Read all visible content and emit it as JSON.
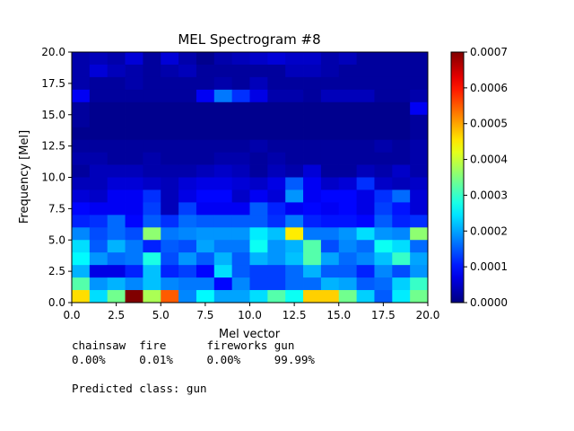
{
  "chart_data": {
    "type": "heatmap",
    "title": "MEL Spectrogram #8",
    "xlabel": "Mel vector",
    "ylabel": "Frequency [Mel]",
    "xlim": [
      0,
      20
    ],
    "ylim": [
      0,
      20
    ],
    "x_ticks": [
      "0.0",
      "2.5",
      "5.0",
      "7.5",
      "10.0",
      "12.5",
      "15.0",
      "17.5",
      "20.0"
    ],
    "y_ticks": [
      "0.0",
      "2.5",
      "5.0",
      "7.5",
      "10.0",
      "12.5",
      "15.0",
      "17.5",
      "20.0"
    ],
    "colormap": "jet",
    "colorbar": {
      "min": 0.0,
      "max": 0.0007,
      "ticks": [
        "0.0000",
        "0.0001",
        "0.0002",
        "0.0003",
        "0.0004",
        "0.0005",
        "0.0006",
        "0.0007"
      ]
    },
    "grid_note": "values listed top row first (y = 19-20 down to y = 0-1); 20 columns x = 0..20",
    "values": [
      [
        3e-05,
        4e-05,
        3e-05,
        6e-05,
        2e-05,
        6e-05,
        3e-05,
        1e-05,
        3e-05,
        4e-05,
        5e-05,
        6e-05,
        5e-05,
        5e-05,
        3e-05,
        4e-05,
        2e-05,
        2e-05,
        2e-05,
        2e-05
      ],
      [
        3e-05,
        6e-05,
        4e-05,
        3e-05,
        2e-05,
        3e-05,
        4e-05,
        2e-05,
        2e-05,
        2e-05,
        2e-05,
        2e-05,
        4e-05,
        4e-05,
        3e-05,
        2e-05,
        2e-05,
        2e-05,
        2e-05,
        2e-05
      ],
      [
        3e-05,
        2e-05,
        2e-05,
        3e-05,
        2e-05,
        2e-05,
        2e-05,
        2e-05,
        3e-05,
        2e-05,
        4e-05,
        2e-05,
        2e-05,
        2e-05,
        2e-05,
        2e-05,
        2e-05,
        2e-05,
        2e-05,
        2e-05
      ],
      [
        8e-05,
        2e-05,
        2e-05,
        2e-05,
        2e-05,
        2e-05,
        2e-05,
        8e-05,
        0.00017,
        0.00012,
        7e-05,
        3e-05,
        3e-05,
        2e-05,
        4e-05,
        4e-05,
        4e-05,
        2e-05,
        2e-05,
        3e-05
      ],
      [
        2e-05,
        1e-05,
        1e-05,
        1e-05,
        1e-05,
        1e-05,
        1e-05,
        1e-05,
        1e-05,
        1e-05,
        1e-05,
        1e-05,
        1e-05,
        1e-05,
        1e-05,
        1e-05,
        1e-05,
        1e-05,
        1e-05,
        8e-05
      ],
      [
        2e-05,
        1e-05,
        1e-05,
        1e-05,
        1e-05,
        1e-05,
        1e-05,
        1e-05,
        1e-05,
        1e-05,
        1e-05,
        1e-05,
        1e-05,
        1e-05,
        1e-05,
        1e-05,
        1e-05,
        1e-05,
        1e-05,
        2e-05
      ],
      [
        1e-05,
        1e-05,
        1e-05,
        1e-05,
        1e-05,
        1e-05,
        1e-05,
        1e-05,
        1e-05,
        1e-05,
        1e-05,
        1e-05,
        1e-05,
        1e-05,
        1e-05,
        1e-05,
        1e-05,
        1e-05,
        1e-05,
        2e-05
      ],
      [
        2e-05,
        2e-05,
        2e-05,
        2e-05,
        2e-05,
        2e-05,
        2e-05,
        2e-05,
        2e-05,
        2e-05,
        3e-05,
        2e-05,
        2e-05,
        2e-05,
        2e-05,
        2e-05,
        2e-05,
        3e-05,
        2e-05,
        3e-05
      ],
      [
        3e-05,
        3e-05,
        2e-05,
        2e-05,
        3e-05,
        2e-05,
        2e-05,
        2e-05,
        3e-05,
        3e-05,
        2e-05,
        3e-05,
        2e-05,
        2e-05,
        2e-05,
        2e-05,
        2e-05,
        2e-05,
        2e-05,
        3e-05
      ],
      [
        2e-05,
        4e-05,
        4e-05,
        4e-05,
        3e-05,
        3e-05,
        3e-05,
        4e-05,
        5e-05,
        4e-05,
        2e-05,
        4e-05,
        3e-05,
        6e-05,
        2e-05,
        2e-05,
        4e-05,
        3e-05,
        5e-05,
        3e-05
      ],
      [
        4e-05,
        4e-05,
        6e-05,
        6e-05,
        5e-05,
        4e-05,
        6e-05,
        7e-05,
        7e-05,
        6e-05,
        5e-05,
        7e-05,
        0.00015,
        8e-05,
        5e-05,
        6e-05,
        0.00012,
        5e-05,
        4e-05,
        5e-05
      ],
      [
        6e-05,
        5e-05,
        8e-05,
        8e-05,
        0.00012,
        4e-05,
        7e-05,
        9e-05,
        9e-05,
        5e-05,
        8e-05,
        6e-05,
        0.00019,
        8e-05,
        9e-05,
        9e-05,
        7e-05,
        0.00012,
        0.00016,
        6e-05
      ],
      [
        9e-05,
        8e-05,
        8e-05,
        8e-05,
        0.00013,
        4e-05,
        0.00013,
        8e-05,
        8e-05,
        8e-05,
        0.00015,
        0.00011,
        8e-05,
        9e-05,
        8e-05,
        9e-05,
        7e-05,
        0.00013,
        0.0001,
        6e-05
      ],
      [
        0.00011,
        0.00012,
        0.00016,
        9e-05,
        0.00015,
        0.00012,
        0.00016,
        0.00015,
        0.00015,
        0.00015,
        0.00015,
        0.00012,
        0.00017,
        0.00011,
        0.0001,
        0.0001,
        9e-05,
        0.00015,
        0.00011,
        0.00012
      ],
      [
        0.00018,
        0.00014,
        0.00016,
        0.00014,
        0.00036,
        0.00017,
        0.00018,
        0.00019,
        0.00019,
        0.00019,
        0.00025,
        0.00022,
        0.00045,
        0.00017,
        0.00017,
        0.00019,
        0.00024,
        0.00019,
        0.00018,
        0.00036
      ],
      [
        0.00024,
        0.00015,
        0.00021,
        0.00017,
        0.00011,
        0.00015,
        0.00014,
        0.0002,
        0.00017,
        0.00017,
        0.00027,
        0.00019,
        0.00021,
        0.00032,
        0.00014,
        0.00018,
        0.00016,
        0.00027,
        0.00024,
        0.00016
      ],
      [
        0.00026,
        0.00019,
        0.00016,
        0.00017,
        0.00028,
        0.00014,
        0.00019,
        0.00015,
        0.00021,
        0.00015,
        0.00021,
        0.00019,
        0.00022,
        0.00032,
        0.0002,
        0.00016,
        0.00018,
        0.00022,
        0.0003,
        0.0002
      ],
      [
        0.00021,
        7e-05,
        7e-05,
        0.00011,
        0.00022,
        0.00011,
        0.00013,
        9e-05,
        0.00024,
        0.00015,
        0.00013,
        0.00013,
        0.00016,
        0.00021,
        0.00015,
        0.00015,
        0.00011,
        0.00018,
        0.00014,
        0.00019
      ],
      [
        0.00032,
        0.00019,
        0.00021,
        0.00018,
        0.00022,
        0.00018,
        0.00017,
        0.00017,
        9e-05,
        0.00018,
        0.00013,
        0.00013,
        0.00016,
        0.00016,
        0.00021,
        0.0002,
        0.00015,
        0.00016,
        0.00023,
        0.0003
      ],
      [
        0.00046,
        0.00024,
        0.00034,
        0.0007,
        0.00038,
        0.00055,
        0.00018,
        0.00026,
        0.0002,
        0.0002,
        0.00024,
        0.00032,
        0.00027,
        0.00047,
        0.00047,
        0.00034,
        0.00023,
        0.00015,
        0.00025,
        0.00034
      ]
    ]
  },
  "prediction": {
    "header_line": "chainsaw  fire      fireworks gun",
    "values_line": "0.00%     0.01%     0.00%     99.99%",
    "result_line": "Predicted class: gun"
  }
}
